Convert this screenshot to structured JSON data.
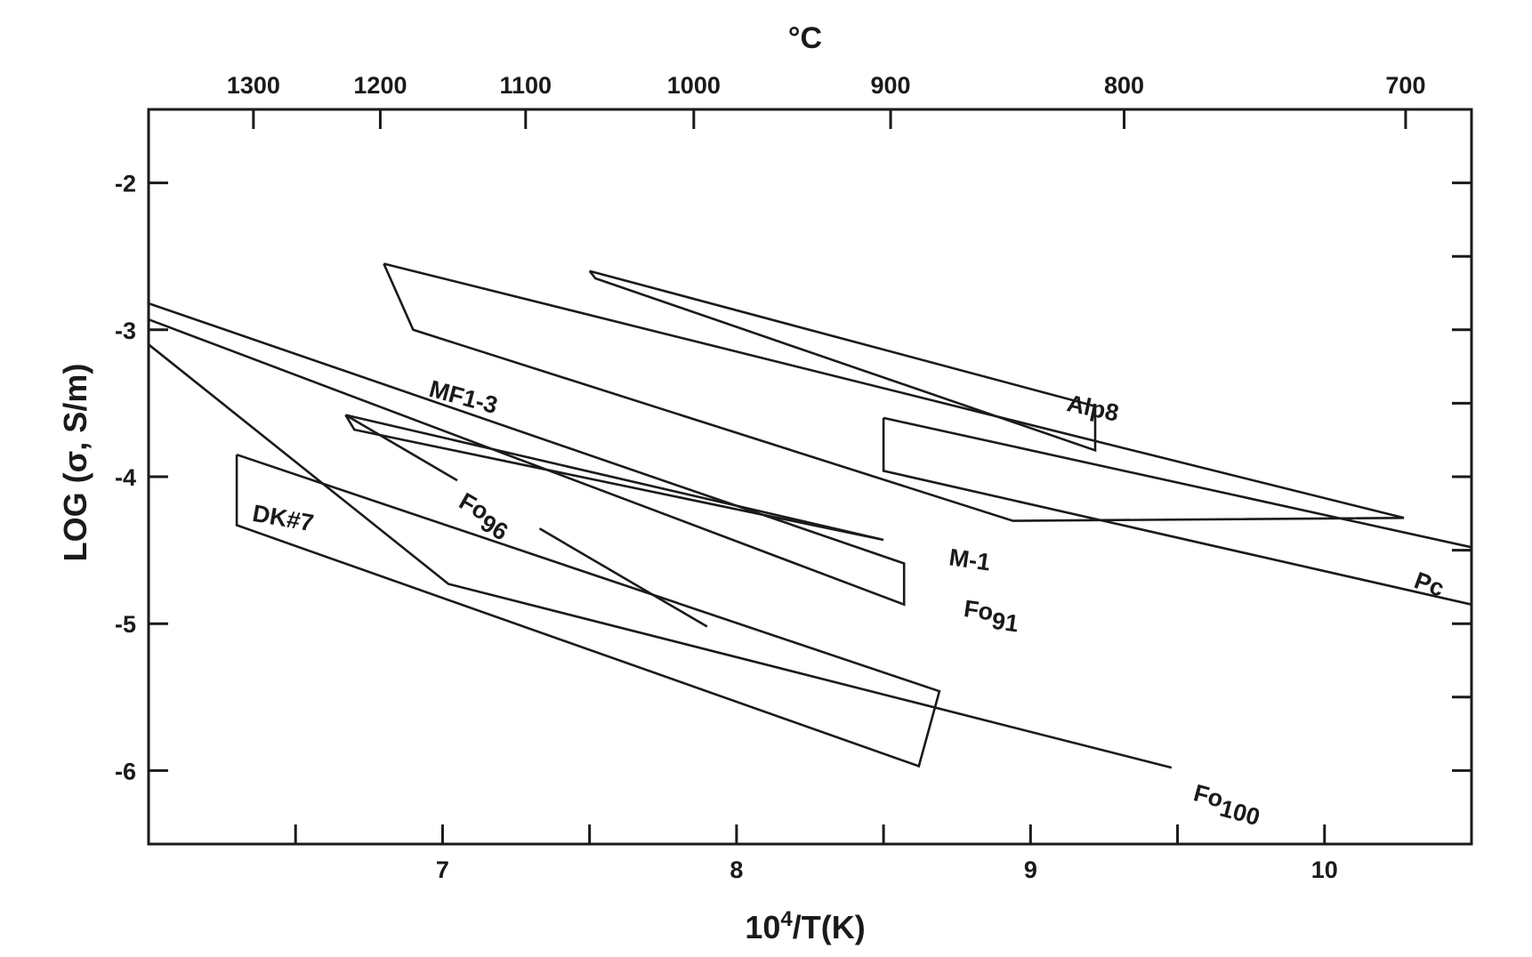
{
  "chart_data": {
    "type": "line",
    "xlabel": "10",
    "xlabel_sup": "4",
    "xlabel_rest": "/T(K)",
    "ylabel": "LOG (σ, S/m)",
    "top_axis_title": "°C",
    "xlim": [
      6.0,
      10.5
    ],
    "ylim": [
      -6.5,
      -1.5
    ],
    "x_ticks": [
      {
        "value": 7,
        "label": "7"
      },
      {
        "value": 8,
        "label": "8"
      },
      {
        "value": 9,
        "label": "9"
      },
      {
        "value": 10,
        "label": "10"
      }
    ],
    "y_ticks": [
      {
        "value": -2,
        "label": "-2"
      },
      {
        "value": -3,
        "label": "-3"
      },
      {
        "value": -4,
        "label": "-4"
      },
      {
        "value": -5,
        "label": "-5"
      },
      {
        "value": -6,
        "label": "-6"
      }
    ],
    "top_ticks": [
      {
        "celsius": 1300,
        "label": "1300"
      },
      {
        "celsius": 1200,
        "label": "1200"
      },
      {
        "celsius": 1100,
        "label": "1100"
      },
      {
        "celsius": 1000,
        "label": "1000"
      },
      {
        "celsius": 900,
        "label": "900"
      },
      {
        "celsius": 800,
        "label": "800"
      },
      {
        "celsius": 700,
        "label": "700"
      }
    ],
    "series": [
      {
        "name": "MF1-3",
        "label_x": 6.95,
        "label_y": -3.45,
        "label_rot": 15,
        "points": [
          [
            6.8,
            -2.55
          ],
          [
            6.9,
            -3.0
          ],
          [
            8.94,
            -4.3
          ],
          [
            10.27,
            -4.28
          ],
          [
            6.8,
            -2.55
          ]
        ]
      },
      {
        "name": "Alp8",
        "label_x": 9.12,
        "label_y": -3.55,
        "label_rot": 12,
        "points": [
          [
            7.5,
            -2.6
          ],
          [
            9.22,
            -3.52
          ],
          [
            9.22,
            -3.82
          ],
          [
            7.52,
            -2.65
          ],
          [
            7.5,
            -2.6
          ]
        ]
      },
      {
        "name": "Pc",
        "label_x": 10.3,
        "label_y": -4.75,
        "label_rot": 20,
        "points": [
          [
            8.5,
            -3.6
          ],
          [
            10.5,
            -4.48
          ],
          [
            10.5,
            -4.87
          ],
          [
            8.5,
            -3.96
          ],
          [
            8.5,
            -3.6
          ]
        ]
      },
      {
        "name": "Fo96",
        "label_x": 7.05,
        "label_y": -4.2,
        "label_rot": 30,
        "gap": [
          7.05,
          7.33
        ],
        "points": [
          [
            6.67,
            -3.58
          ],
          [
            7.9,
            -5.02
          ]
        ]
      },
      {
        "name": "M-1",
        "label_x": 8.72,
        "label_y": -4.6,
        "label_rot": 8,
        "points": [
          [
            6.67,
            -3.58
          ],
          [
            6.7,
            -3.68
          ],
          [
            8.5,
            -4.43
          ],
          [
            6.67,
            -3.58
          ]
        ]
      },
      {
        "name": "Fo91",
        "label_x": 8.77,
        "label_y": -4.95,
        "label_rot": 8,
        "points": [
          [
            6.0,
            -2.82
          ],
          [
            8.57,
            -4.59
          ],
          [
            8.57,
            -4.87
          ],
          [
            6.0,
            -2.93
          ]
        ]
      },
      {
        "name": "DK#7",
        "label_x": 6.35,
        "label_y": -4.3,
        "label_rot": 10,
        "points": [
          [
            6.3,
            -3.85
          ],
          [
            8.69,
            -5.46
          ],
          [
            8.62,
            -5.97
          ],
          [
            6.3,
            -4.33
          ],
          [
            6.3,
            -3.85
          ]
        ]
      },
      {
        "name": "Fo100",
        "label_x": 9.55,
        "label_y": -6.2,
        "label_rot": 15,
        "points": [
          [
            6.0,
            -3.1
          ],
          [
            7.02,
            -4.73
          ],
          [
            9.48,
            -5.98
          ]
        ]
      }
    ]
  }
}
